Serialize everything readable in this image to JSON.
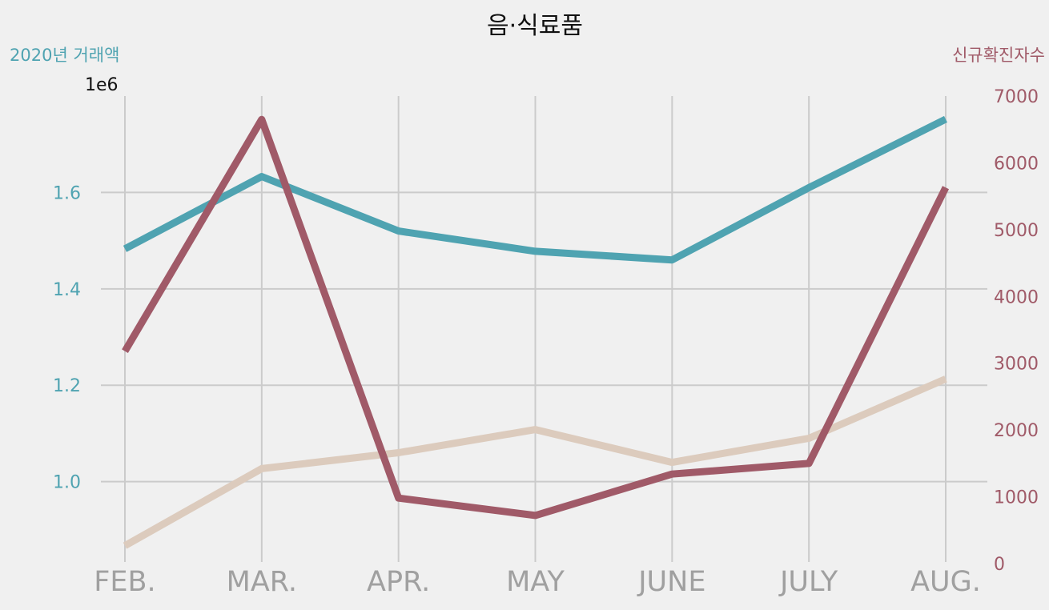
{
  "chart_data": {
    "type": "line",
    "title": "음·식료품",
    "categories": [
      "FEB.",
      "MAR.",
      "APR.",
      "MAY",
      "JUNE",
      "JULY",
      "AUG."
    ],
    "left_axis": {
      "label": "2020년 거래액",
      "offset_text": "1e6",
      "scale": 1000000,
      "ylim": [
        0.83,
        1.8
      ],
      "ticks": [
        1.0,
        1.2,
        1.4,
        1.6
      ],
      "tick_labels": [
        "1.0",
        "1.2",
        "1.4",
        "1.6"
      ],
      "color": "#4fa3b1"
    },
    "right_axis": {
      "label": "신규확진자수",
      "ylim": [
        0,
        7000
      ],
      "ticks": [
        0,
        1000,
        2000,
        3000,
        4000,
        5000,
        6000,
        7000
      ],
      "tick_labels": [
        "0",
        "1000",
        "2000",
        "3000",
        "4000",
        "5000",
        "6000",
        "7000"
      ],
      "color": "#a05a68"
    },
    "series": [
      {
        "axis": "left",
        "color": "#4fa3b1",
        "values": [
          1.483,
          1.633,
          1.52,
          1.478,
          1.46,
          1.61,
          1.752
        ]
      },
      {
        "axis": "left",
        "color": "#dccbbd",
        "values": [
          0.867,
          1.027,
          1.06,
          1.108,
          1.04,
          1.09,
          1.213
        ]
      },
      {
        "axis": "right",
        "color": "#a05a68",
        "values": [
          3180,
          6650,
          980,
          720,
          1340,
          1500,
          5630
        ]
      }
    ],
    "grid": true
  }
}
